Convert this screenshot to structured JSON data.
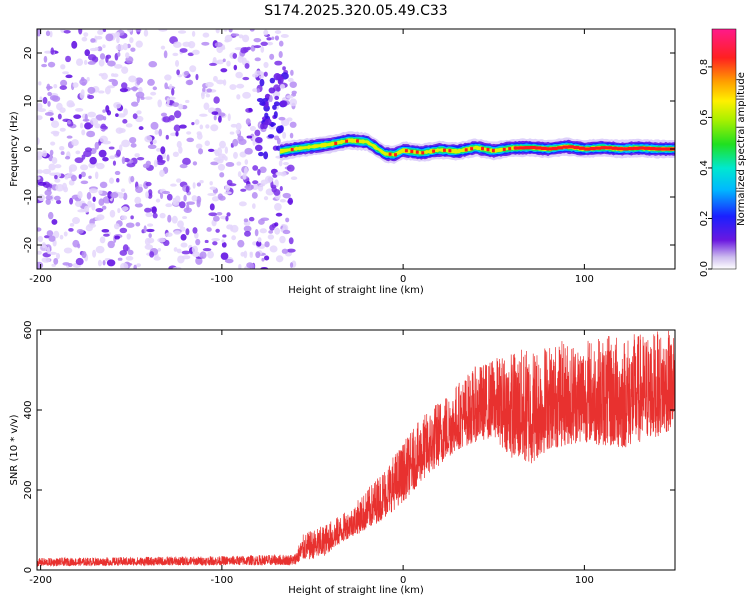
{
  "title": "S174.2025.320.05.49.C33",
  "chart_data": [
    {
      "type": "heatmap",
      "name": "spectrogram",
      "xlabel": "Height of straight line (km)",
      "ylabel": "Frequency (Hz)",
      "xlim": [
        -202,
        150
      ],
      "ylim": [
        -25,
        25
      ],
      "xticks": [
        -200,
        -100,
        0,
        100
      ],
      "yticks": [
        -20,
        -10,
        0,
        10,
        20
      ],
      "noise_region": [
        -202,
        -60
      ],
      "signal_line_freq_hz": [
        [
          -68,
          -0.5
        ],
        [
          -60,
          0.0
        ],
        [
          -50,
          0.5
        ],
        [
          -40,
          1.0
        ],
        [
          -30,
          1.8
        ],
        [
          -20,
          1.5
        ],
        [
          -15,
          0.3
        ],
        [
          -10,
          -1.0
        ],
        [
          -5,
          -1.2
        ],
        [
          0,
          -0.3
        ],
        [
          10,
          -0.8
        ],
        [
          20,
          -0.2
        ],
        [
          30,
          -0.5
        ],
        [
          40,
          0.3
        ],
        [
          50,
          -0.4
        ],
        [
          60,
          0.2
        ],
        [
          70,
          0.3
        ],
        [
          80,
          0.0
        ],
        [
          90,
          0.5
        ],
        [
          100,
          0.0
        ],
        [
          110,
          0.3
        ],
        [
          120,
          0.0
        ],
        [
          130,
          0.2
        ],
        [
          140,
          0.0
        ],
        [
          150,
          0.0
        ]
      ],
      "colorbar": {
        "label": "Normalized spectral amplitude",
        "range": [
          0.0,
          0.95
        ],
        "ticks": [
          0.0,
          0.2,
          0.4,
          0.6,
          0.8
        ],
        "tick_labels": [
          "0.0",
          "0.2",
          "0.4",
          "0.6",
          "0.8"
        ]
      }
    },
    {
      "type": "line",
      "name": "snr",
      "xlabel": "Height of straight line (km)",
      "ylabel": "SNR (10 * v/v)",
      "xlim": [
        -202,
        150
      ],
      "ylim": [
        0,
        600
      ],
      "xticks": [
        -200,
        -100,
        0,
        100
      ],
      "yticks": [
        0,
        200,
        400,
        600
      ],
      "color": "#e8312f",
      "envelope": {
        "x": [
          -202,
          -100,
          -60,
          -55,
          -45,
          -30,
          -20,
          -10,
          0,
          10,
          20,
          30,
          40,
          50,
          60,
          70,
          80,
          100,
          120,
          150
        ],
        "low": [
          10,
          12,
          12,
          25,
          30,
          80,
          100,
          130,
          170,
          220,
          260,
          300,
          320,
          330,
          280,
          260,
          300,
          320,
          300,
          350
        ],
        "high": [
          30,
          35,
          40,
          90,
          110,
          150,
          200,
          260,
          320,
          380,
          430,
          470,
          510,
          530,
          550,
          560,
          570,
          580,
          590,
          600
        ]
      }
    }
  ],
  "colors": {
    "spectrogram_low": "#a070f0",
    "spectrogram_mid": "#5a10e6",
    "signal_core": "#ff1a1a",
    "snr_line": "#e8312f"
  }
}
